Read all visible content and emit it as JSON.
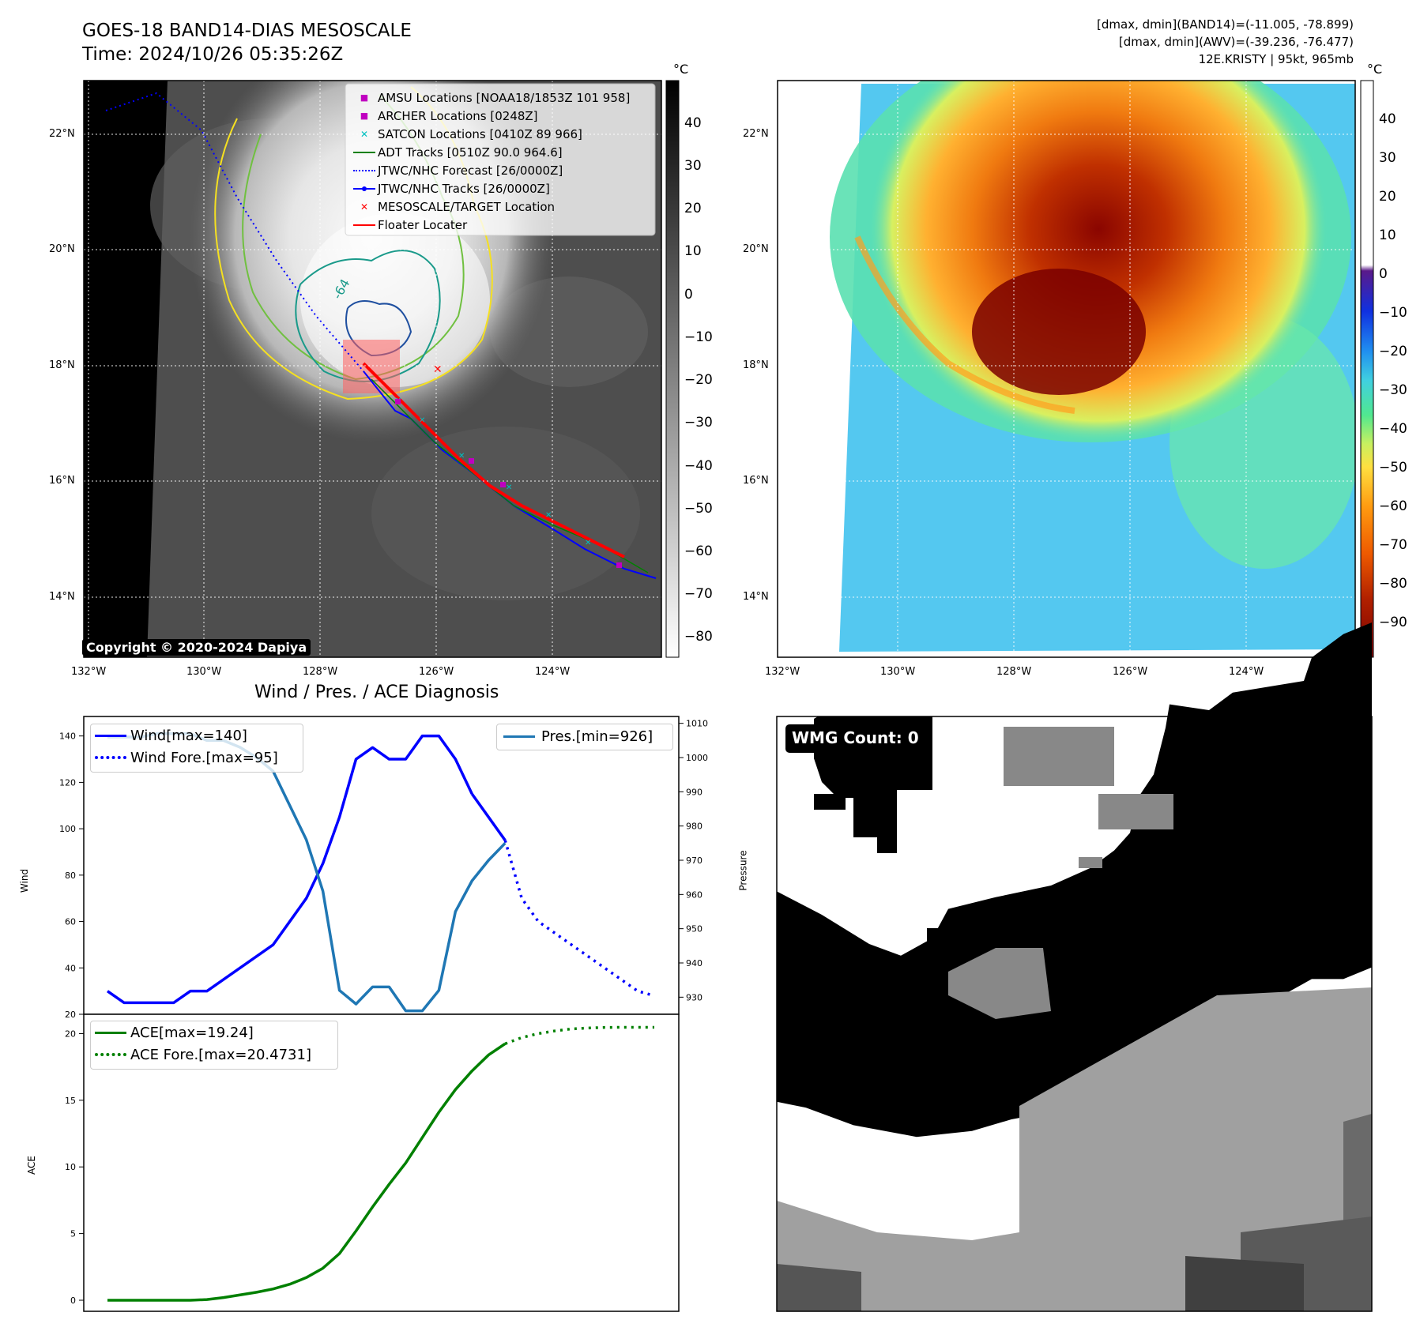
{
  "header": {
    "title_line1": "GOES-18 BAND14-DIAS MESOSCALE",
    "title_line2": "Time: 2024/10/26 05:35:26Z",
    "right_line1": "[dmax, dmin](BAND14)=(-11.005, -78.899)",
    "right_line2": "[dmax, dmin](AWV)=(-39.236, -76.477)",
    "right_line3": "12E.KRISTY | 95kt, 965mb"
  },
  "map_ir": {
    "unit": "°C",
    "lat_labels": [
      "22°N",
      "20°N",
      "18°N",
      "16°N",
      "14°N"
    ],
    "lon_labels": [
      "132°W",
      "130°W",
      "128°W",
      "126°W",
      "124°W"
    ],
    "colorbar_ticks": [
      "40",
      "30",
      "20",
      "10",
      "0",
      "−10",
      "−20",
      "−30",
      "−40",
      "−50",
      "−60",
      "−70",
      "−80"
    ],
    "contour_label": "-64",
    "copyright": "Copyright © 2020-2024 Dapiya",
    "legend": [
      {
        "label": "AMSU Locations [NOAA18/1853Z 101 958]",
        "color": "#c000c0",
        "marker": "square"
      },
      {
        "label": "ARCHER Locations [0248Z]",
        "color": "#c000c0",
        "marker": "square"
      },
      {
        "label": "SATCON Locations [0410Z 89 966]",
        "color": "#00c0c0",
        "marker": "x"
      },
      {
        "label": "ADT Tracks [0510Z 90.0 964.6]",
        "color": "#008000",
        "marker": "line"
      },
      {
        "label": "JTWC/NHC Forecast [26/0000Z]",
        "color": "#0000ff",
        "marker": "dotted"
      },
      {
        "label": "JTWC/NHC Tracks [26/0000Z]",
        "color": "#0000ff",
        "marker": "dotline"
      },
      {
        "label": "MESOSCALE/TARGET Location",
        "color": "#ff0000",
        "marker": "x"
      },
      {
        "label": "Floater Locater",
        "color": "#ff0000",
        "marker": "line"
      }
    ]
  },
  "map_wv": {
    "unit": "°C",
    "lat_labels": [
      "22°N",
      "20°N",
      "18°N",
      "16°N",
      "14°N"
    ],
    "lon_labels": [
      "132°W",
      "130°W",
      "128°W",
      "126°W",
      "124°W"
    ],
    "colorbar_ticks": [
      "40",
      "30",
      "20",
      "10",
      "0",
      "−10",
      "−20",
      "−30",
      "−40",
      "−50",
      "−60",
      "−70",
      "−80",
      "−90"
    ]
  },
  "wmg": {
    "label": "WMG Count: 0"
  },
  "chart_data": [
    {
      "type": "line",
      "title": "Wind / Pres. / ACE Diagnosis",
      "ylabel": "Wind",
      "ylabel_right": "Pressure",
      "ylim": [
        20,
        145
      ],
      "ylim_right": [
        925,
        1012
      ],
      "yticks": [
        20,
        40,
        60,
        80,
        100,
        120,
        140
      ],
      "yticks_right": [
        930,
        940,
        950,
        960,
        970,
        980,
        990,
        1000,
        1010
      ],
      "x": [
        0,
        1,
        2,
        3,
        4,
        5,
        6,
        7,
        8,
        9,
        10,
        11,
        12,
        13,
        14,
        15,
        16,
        17,
        18,
        19,
        20,
        21,
        22,
        23,
        24,
        25,
        26,
        27,
        28,
        29,
        30,
        31,
        32,
        33
      ],
      "series": [
        {
          "name": "Wind[max=140]",
          "axis": "left",
          "color": "#0000ff",
          "style": "solid",
          "x": [
            0,
            1,
            2,
            3,
            4,
            5,
            6,
            10,
            11,
            12,
            13,
            14,
            15,
            16,
            17,
            18,
            19,
            20,
            21,
            22
          ],
          "values": [
            30,
            25,
            25,
            25,
            25,
            30,
            30,
            50,
            60,
            70,
            85,
            105,
            130,
            135,
            130,
            130,
            140,
            140,
            130,
            115
          ]
        },
        {
          "name": "Wind[max=140]",
          "axis": "left",
          "color": "#0000ff",
          "style": "solid",
          "x": [
            22,
            23,
            24
          ],
          "values": [
            115,
            105,
            95
          ]
        },
        {
          "name": "Wind Fore.[max=95]",
          "axis": "left",
          "color": "#0000ff",
          "style": "dotted",
          "x": [
            24,
            25,
            26,
            27,
            28,
            29,
            30,
            31,
            32,
            33
          ],
          "values": [
            95,
            70,
            60,
            55,
            50,
            45,
            40,
            35,
            30,
            28
          ]
        },
        {
          "name": "Pres.[min=926]",
          "axis": "right",
          "color": "#1f77b4",
          "style": "solid",
          "x": [
            0,
            1,
            2,
            3,
            4,
            5,
            6,
            7,
            8,
            9,
            10,
            11,
            12,
            13,
            14,
            15,
            16,
            17,
            18,
            19,
            20,
            21,
            22,
            23,
            24
          ],
          "values": [
            1006,
            1006,
            1006,
            1007,
            1007,
            1007,
            1005,
            1005,
            1003,
            1000,
            996,
            986,
            976,
            961,
            932,
            928,
            933,
            933,
            926,
            926,
            932,
            955,
            964,
            970,
            975
          ]
        }
      ],
      "legend_left": [
        "Wind[max=140]",
        "Wind Fore.[max=95]"
      ],
      "legend_right": [
        "Pres.[min=926]"
      ]
    },
    {
      "type": "line",
      "ylabel": "ACE",
      "ylim": [
        -0.5,
        20.5
      ],
      "yticks": [
        0,
        5,
        10,
        15,
        20
      ],
      "series": [
        {
          "name": "ACE[max=19.24]",
          "color": "#008000",
          "style": "solid",
          "x": [
            0,
            1,
            2,
            3,
            4,
            5,
            6,
            7,
            8,
            9,
            10,
            11,
            12,
            13,
            14,
            15,
            16,
            17,
            18,
            19,
            20,
            21,
            22,
            23,
            24
          ],
          "values": [
            0,
            0,
            0,
            0,
            0,
            0,
            0.05,
            0.2,
            0.4,
            0.6,
            0.85,
            1.2,
            1.7,
            2.4,
            3.5,
            5.2,
            7.0,
            8.7,
            10.3,
            12.2,
            14.1,
            15.8,
            17.2,
            18.4,
            19.24
          ]
        },
        {
          "name": "ACE Fore.[max=20.4731]",
          "color": "#008000",
          "style": "dotted",
          "x": [
            24,
            25,
            26,
            27,
            28,
            29,
            30,
            31,
            32,
            33
          ],
          "values": [
            19.24,
            19.7,
            20.0,
            20.2,
            20.35,
            20.42,
            20.46,
            20.47,
            20.47,
            20.4731
          ]
        }
      ],
      "legend": [
        "ACE[max=19.24]",
        "ACE Fore.[max=20.4731]"
      ]
    }
  ]
}
